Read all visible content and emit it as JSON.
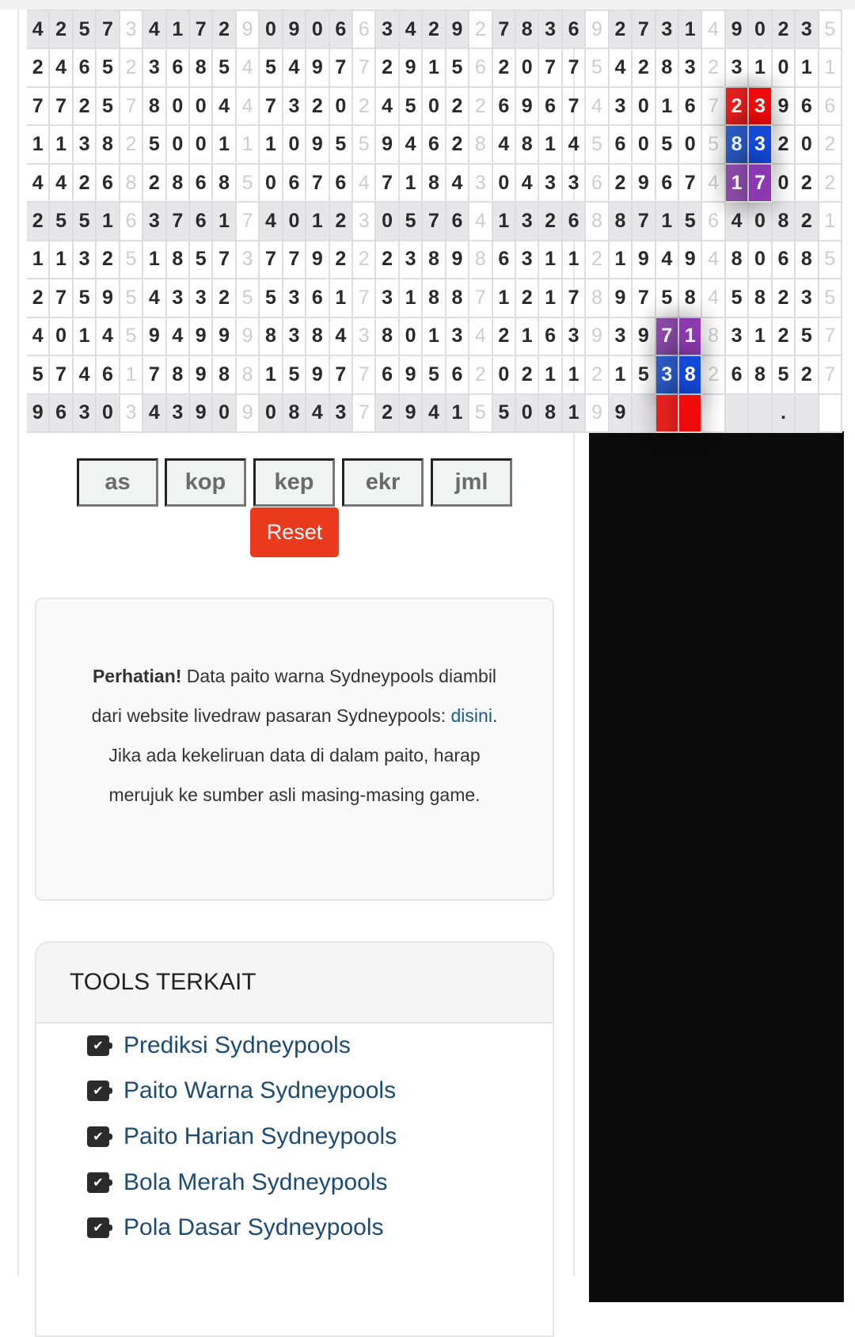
{
  "grid": {
    "rows": [
      "42573417290906634292783692731490235",
      "24652368545497729156207754283231011",
      "77257800447320245022696743016723966",
      "11382500111095594628481456050583202",
      "44268286850676471843043362967417022",
      "25516376174012305764132688715640821",
      "11325185737792223898631121949480685",
      "27595433255361731887121789758458235",
      "40145949998384380134216393971831257",
      "57461789881597769562021121538268527",
      "96303439090843729415508199      .    ."
    ],
    "shaded_rows": [
      0,
      5,
      10
    ],
    "highlights": [
      {
        "row": 2,
        "col": 30,
        "color": "#e8201f"
      },
      {
        "row": 2,
        "col": 31,
        "color": "#f00a0a"
      },
      {
        "row": 3,
        "col": 30,
        "color": "#2a5bc4"
      },
      {
        "row": 3,
        "col": 31,
        "color": "#1449d8"
      },
      {
        "row": 4,
        "col": 30,
        "color": "#8c4aa8"
      },
      {
        "row": 4,
        "col": 31,
        "color": "#8a3aae"
      },
      {
        "row": 8,
        "col": 27,
        "color": "#8c4aa8"
      },
      {
        "row": 8,
        "col": 28,
        "color": "#8a3aae"
      },
      {
        "row": 9,
        "col": 27,
        "color": "#2a5bc4"
      },
      {
        "row": 9,
        "col": 28,
        "color": "#1449d8"
      },
      {
        "row": 10,
        "col": 27,
        "color": "#e8201f"
      },
      {
        "row": 10,
        "col": 28,
        "color": "#f00a0a"
      }
    ]
  },
  "toolbar": {
    "buttons": [
      "as",
      "kop",
      "kep",
      "ekr",
      "jml"
    ],
    "reset_label": "Reset"
  },
  "notice": {
    "bold": "Perhatian!",
    "text1": " Data paito warna Sydneypools diambil dari website livedraw pasaran Sydneypools: ",
    "link": "disini",
    "text2": ". Jika ada kekeliruan data di dalam paito, harap merujuk ke sumber asli masing-masing game."
  },
  "tools": {
    "title": "TOOLS TERKAIT",
    "icon": "check-square-icon",
    "items": [
      "Prediksi Sydneypools",
      "Paito Warna Sydneypools",
      "Paito Harian Sydneypools",
      "Bola Merah Sydneypools",
      "Pola Dasar Sydneypools"
    ]
  }
}
